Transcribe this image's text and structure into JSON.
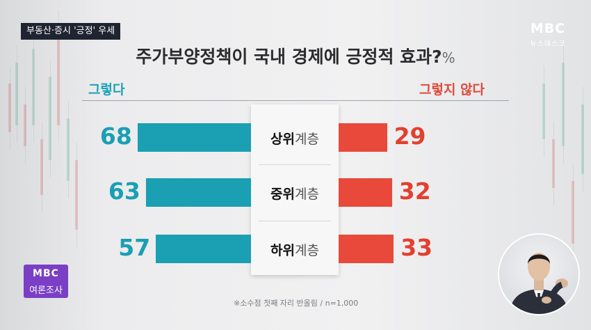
{
  "caption": "부동산·증시 '긍정' 우세",
  "logo": {
    "main": "MBC",
    "sub": "뉴스데스크"
  },
  "title": "주가부양정책이 국내 경제에 긍정적 효과?",
  "title_unit": "%",
  "poll_badge": {
    "line1": "MBC",
    "line2": "여론조사"
  },
  "footnote": "※소수점 첫째 자리 반올림 / n=1,000",
  "colors": {
    "positive": "#1a9fb3",
    "negative": "#e8493b"
  },
  "chart_data": {
    "type": "bar",
    "title": "주가부양정책이 국내 경제에 긍정적 효과?",
    "unit": "%",
    "categories": [
      "상위계층",
      "중위계층",
      "하위계층"
    ],
    "series": [
      {
        "name": "그렇다",
        "values": [
          68,
          63,
          57
        ]
      },
      {
        "name": "그렇지 않다",
        "values": [
          29,
          32,
          33
        ]
      }
    ]
  }
}
